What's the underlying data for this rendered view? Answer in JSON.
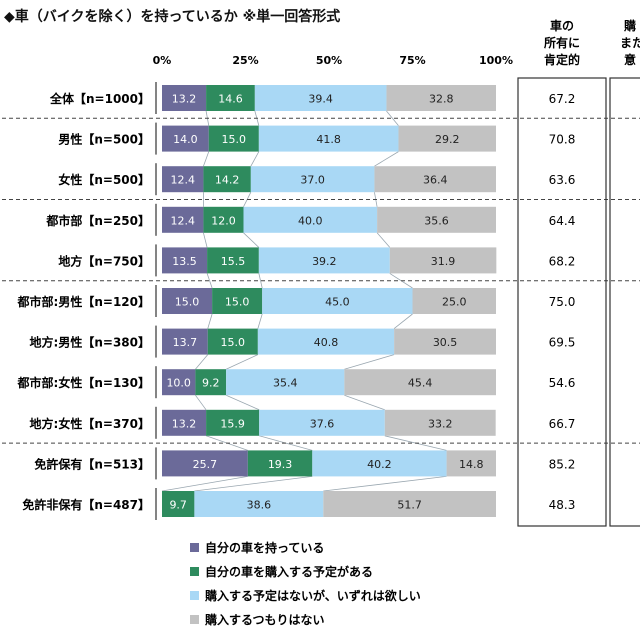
{
  "title": "◆車（バイクを除く）を持っているか ※単一回答形式",
  "chart_data": {
    "type": "bar",
    "stacked": true,
    "orientation": "horizontal",
    "xlim": [
      0,
      100
    ],
    "x_ticks": [
      "0%",
      "25%",
      "50%",
      "75%",
      "100%"
    ],
    "categories": [
      "全体【n=1000】",
      "男性【n=500】",
      "女性【n=500】",
      "都市部【n=250】",
      "地方【n=750】",
      "都市部:男性【n=120】",
      "地方:男性【n=380】",
      "都市部:女性【n=130】",
      "地方:女性【n=370】",
      "免許保有【n=513】",
      "免許非保有【n=487】"
    ],
    "series": [
      {
        "name": "自分の車を持っている",
        "color": "#6b6a99",
        "values": [
          13.2,
          14.0,
          12.4,
          12.4,
          13.5,
          15.0,
          13.7,
          10.0,
          13.2,
          25.7,
          0
        ]
      },
      {
        "name": "自分の車を購入する予定がある",
        "color": "#2e8b5e",
        "values": [
          14.6,
          15.0,
          14.2,
          12.0,
          15.5,
          15.0,
          15.0,
          9.2,
          15.9,
          19.3,
          9.7
        ]
      },
      {
        "name": "購入する予定はないが、いずれは欲しい",
        "color": "#a9d8f5",
        "values": [
          39.4,
          41.8,
          37.0,
          40.0,
          39.2,
          45.0,
          40.8,
          35.4,
          37.6,
          40.2,
          38.6
        ]
      },
      {
        "name": "購入するつもりはない",
        "color": "#c2c2c2",
        "values": [
          32.8,
          29.2,
          36.4,
          35.6,
          31.9,
          25.0,
          30.5,
          45.4,
          33.2,
          14.8,
          51.7
        ]
      }
    ],
    "side_column": {
      "header": [
        "車の",
        "所有に",
        "肯定的"
      ],
      "values": [
        "67.2",
        "70.8",
        "63.6",
        "64.4",
        "68.2",
        "75.0",
        "69.5",
        "54.6",
        "66.7",
        "85.2",
        "48.3"
      ]
    },
    "cut_column": {
      "header": [
        "購",
        "また",
        "意"
      ],
      "values": [
        "",
        "",
        "",
        "",
        "",
        "",
        "",
        "",
        "",
        "",
        ""
      ]
    },
    "group_separators_after": [
      0,
      2,
      4,
      8
    ],
    "colors": {
      "separator": "#444444",
      "connector": "#9aa7b0"
    }
  }
}
